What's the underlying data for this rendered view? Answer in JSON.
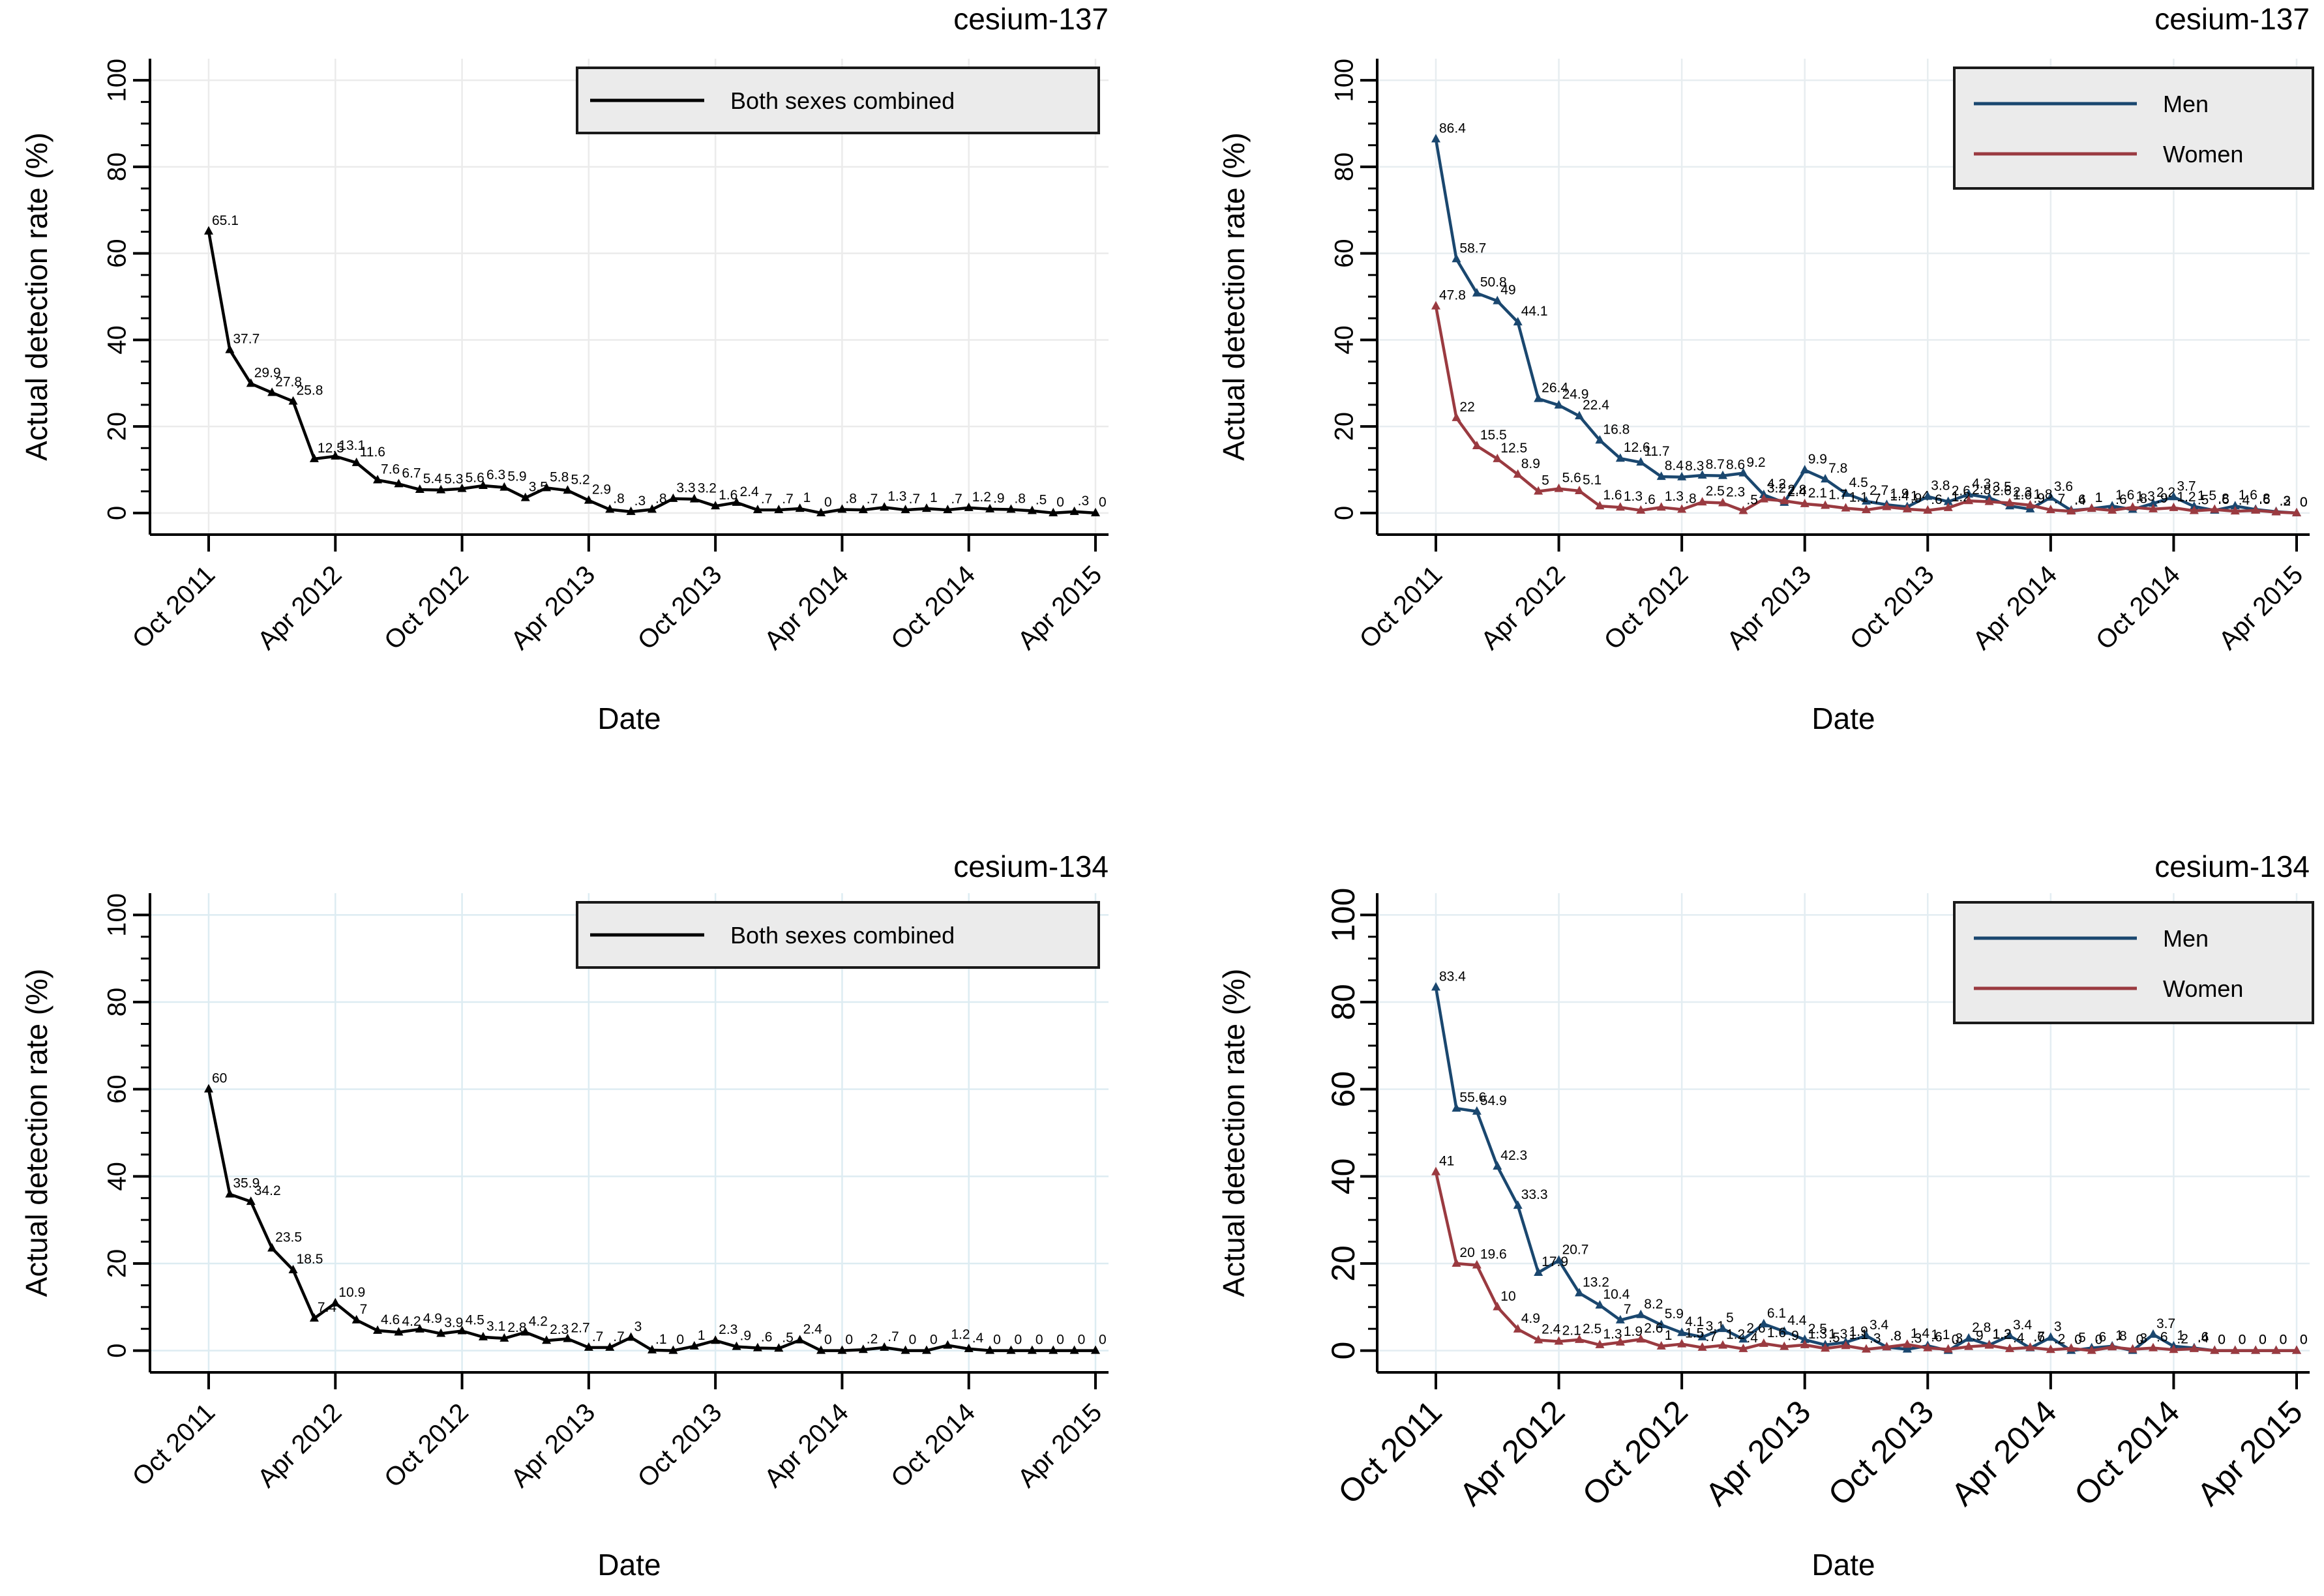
{
  "figure": {
    "xlabel": "Date",
    "ylabel": "Actual detection rate (%)",
    "x_tick_labels": [
      "Oct 2011",
      "Apr 2012",
      "Oct 2012",
      "Apr 2013",
      "Oct 2013",
      "Apr 2014",
      "Oct 2014",
      "Apr 2015"
    ],
    "x_tick_months": [
      0,
      6,
      12,
      18,
      24,
      30,
      36,
      42
    ],
    "y_ticks": [
      0,
      20,
      40,
      60,
      80,
      100
    ],
    "y_minor_step": 5,
    "ylim": [
      0,
      100
    ],
    "legend_combined_label": "Both sexes combined",
    "legend_men_label": "Men",
    "legend_women_label": "Women"
  },
  "colors": {
    "combined": "#000000",
    "men": "#1a476f",
    "women": "#9a3a40",
    "legend_bg": "#ebebeb",
    "legend_border": "#1a1a1a",
    "axis": "#000000",
    "label_text": "#1a1a1a"
  },
  "chart_data": [
    {
      "type": "line",
      "title": "cesium-137",
      "xlabel": "Date",
      "ylabel": "Actual detection rate (%)",
      "grid_color": "#ebebeb",
      "legend": "single",
      "x_start": "Oct 2011",
      "x_end": "Apr 2015",
      "x_interval": "monthly",
      "ylim": [
        0,
        100
      ],
      "series": [
        {
          "name": "Both sexes combined",
          "color_key": "combined",
          "values": [
            65.1,
            37.7,
            29.9,
            27.8,
            25.8,
            12.5,
            13.1,
            11.6,
            7.6,
            6.7,
            5.4,
            5.3,
            5.6,
            6.3,
            5.9,
            3.5,
            5.8,
            5.2,
            2.9,
            0.8,
            0.3,
            0.8,
            3.3,
            3.2,
            1.6,
            2.4,
            0.7,
            0.7,
            1,
            0,
            0.8,
            0.7,
            1.3,
            0.7,
            1,
            0.7,
            1.2,
            0.9,
            0.8,
            0.5,
            0,
            0.3,
            0
          ]
        }
      ]
    },
    {
      "type": "line",
      "title": "cesium-137",
      "xlabel": "Date",
      "ylabel": "Actual detection rate (%)",
      "grid_color": "#e7edf0",
      "legend": "double",
      "x_start": "Oct 2011",
      "x_end": "Apr 2015",
      "x_interval": "monthly",
      "ylim": [
        0,
        100
      ],
      "series": [
        {
          "name": "Men",
          "color_key": "men",
          "values": [
            86.4,
            58.7,
            50.8,
            49,
            44.1,
            26.4,
            24.9,
            22.4,
            16.8,
            12.6,
            11.7,
            8.4,
            8.3,
            8.7,
            8.6,
            9.2,
            4.2,
            2.4,
            9.9,
            7.8,
            4.5,
            2.7,
            1.9,
            1.4,
            3.8,
            2.6,
            4.3,
            3.5,
            1.6,
            0.9,
            3.6,
            0.6,
            1,
            1.6,
            0.8,
            2.2,
            3.7,
            1.5,
            0.6,
            1.6,
            0.8,
            0.3,
            0
          ]
        },
        {
          "name": "Women",
          "color_key": "women",
          "values": [
            47.8,
            22,
            15.5,
            12.5,
            8.9,
            5,
            5.6,
            5.1,
            1.6,
            1.3,
            0.6,
            1.3,
            0.8,
            2.5,
            2.3,
            0.5,
            3.2,
            2.8,
            2.1,
            1.7,
            1.1,
            0.7,
            1.4,
            0.9,
            0.6,
            1.2,
            2.8,
            2.6,
            2.3,
            1.8,
            0.7,
            0.4,
            1,
            0.6,
            1.3,
            0.9,
            1.2,
            0.5,
            0.8,
            0.4,
            0.6,
            0.2,
            0
          ]
        }
      ]
    },
    {
      "type": "line",
      "title": "cesium-134",
      "xlabel": "Date",
      "ylabel": "Actual detection rate (%)",
      "grid_color": "#ddecf2",
      "legend": "single",
      "x_start": "Oct 2011",
      "x_end": "Apr 2015",
      "x_interval": "monthly",
      "ylim": [
        0,
        100
      ],
      "series": [
        {
          "name": "Both sexes combined",
          "color_key": "combined",
          "values": [
            60,
            35.9,
            34.2,
            23.5,
            18.5,
            7.4,
            10.9,
            7,
            4.6,
            4.2,
            4.9,
            3.9,
            4.5,
            3.1,
            2.8,
            4.2,
            2.3,
            2.7,
            0.7,
            0.7,
            3,
            0.1,
            0,
            1,
            2.3,
            0.9,
            0.6,
            0.5,
            2.4,
            0,
            0,
            0.2,
            0.7,
            0,
            0,
            1.2,
            0.4,
            0,
            0,
            0,
            0,
            0,
            0
          ]
        }
      ]
    },
    {
      "type": "line",
      "title": "cesium-134",
      "xlabel": "Date",
      "ylabel": "Actual detection rate (%)",
      "grid_color": "#e3edf2",
      "legend": "double",
      "x_start": "Oct 2011",
      "x_end": "Apr 2015",
      "x_interval": "monthly",
      "ylim": [
        0,
        100
      ],
      "series": [
        {
          "name": "Men",
          "color_key": "men",
          "values": [
            83.4,
            55.6,
            54.9,
            42.3,
            33.3,
            17.9,
            20.7,
            13.2,
            10.4,
            7,
            8.2,
            5.9,
            4.1,
            3.1,
            5,
            2.6,
            6.1,
            4.4,
            2.5,
            1.3,
            1.9,
            3.4,
            0.8,
            0.3,
            1.1,
            0,
            2.8,
            1.3,
            3.4,
            0.6,
            3,
            0,
            0.6,
            1,
            0,
            3.7,
            1,
            0.6,
            0,
            0,
            0,
            0,
            0
          ]
        },
        {
          "name": "Women",
          "color_key": "women",
          "values": [
            41,
            20,
            19.6,
            10,
            4.9,
            2.4,
            2.1,
            2.5,
            1.3,
            1.9,
            2.6,
            1,
            1.5,
            0.7,
            1.2,
            0.4,
            1.6,
            0.9,
            1.3,
            0.5,
            1.1,
            0.3,
            0.8,
            1.4,
            0.6,
            0.3,
            0.9,
            1.2,
            0.4,
            0.7,
            0.2,
            0.5,
            0,
            0.8,
            0.3,
            0.6,
            0.2,
            0.4,
            0,
            0,
            0,
            0,
            0
          ]
        }
      ]
    }
  ]
}
